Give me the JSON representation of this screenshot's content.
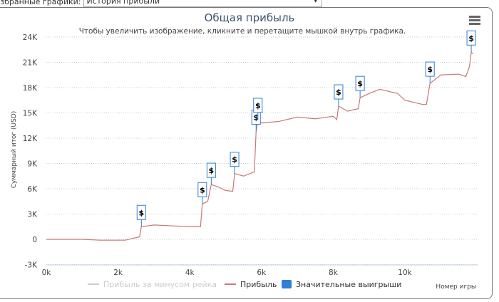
{
  "toolbar": {
    "label": "Избранные графики:",
    "selected": "История прибыли"
  },
  "chart_data": {
    "type": "line",
    "title": "Общая прибыль",
    "subtitle": "Чтобы увеличить изображение, кликните и перетащите мышкой внутрь графика.",
    "xlabel": "Номер игры",
    "ylabel": "Суммарный итог (USD)",
    "xlim": [
      0,
      12000
    ],
    "ylim": [
      -3000,
      24000
    ],
    "xticks": [
      "0k",
      "2k",
      "4k",
      "6k",
      "8k",
      "10k"
    ],
    "yticks": [
      "-3K",
      "0",
      "3K",
      "6K",
      "9K",
      "12K",
      "15K",
      "18K",
      "21K",
      "24K"
    ],
    "grid": "horizontal dotted",
    "legend_position": "bottom",
    "series": [
      {
        "name": "Прибыль за минусом рейка",
        "color": "#cccccc",
        "hidden": true,
        "points": []
      },
      {
        "name": "Прибыль",
        "color": "#c87878",
        "points": [
          [
            0,
            0
          ],
          [
            1000,
            0
          ],
          [
            1500,
            -100
          ],
          [
            2200,
            -100
          ],
          [
            2600,
            300
          ],
          [
            2650,
            1500
          ],
          [
            3000,
            1700
          ],
          [
            3500,
            1600
          ],
          [
            4000,
            1500
          ],
          [
            4300,
            1500
          ],
          [
            4350,
            4200
          ],
          [
            4500,
            4500
          ],
          [
            4600,
            6500
          ],
          [
            4800,
            6200
          ],
          [
            5000,
            5800
          ],
          [
            5200,
            5700
          ],
          [
            5250,
            7800
          ],
          [
            5500,
            7500
          ],
          [
            5800,
            8000
          ],
          [
            5850,
            12800
          ],
          [
            5900,
            14200
          ],
          [
            6000,
            13800
          ],
          [
            6500,
            14000
          ],
          [
            7000,
            14500
          ],
          [
            7500,
            14300
          ],
          [
            8000,
            14600
          ],
          [
            8100,
            14200
          ],
          [
            8150,
            15800
          ],
          [
            8400,
            15200
          ],
          [
            8700,
            15500
          ],
          [
            8750,
            16800
          ],
          [
            9000,
            17300
          ],
          [
            9300,
            17800
          ],
          [
            9800,
            17300
          ],
          [
            10000,
            16500
          ],
          [
            10500,
            16000
          ],
          [
            10600,
            16000
          ],
          [
            10700,
            18500
          ],
          [
            11000,
            19500
          ],
          [
            11500,
            19600
          ],
          [
            11700,
            19300
          ],
          [
            11800,
            20500
          ],
          [
            11850,
            22200
          ],
          [
            11900,
            22000
          ]
        ]
      },
      {
        "name": "Значительные выигрыши",
        "color": "#2f7ed8",
        "flag_text": "$",
        "points": [
          [
            2650,
            1500
          ],
          [
            4350,
            4200
          ],
          [
            4600,
            6500
          ],
          [
            5250,
            7800
          ],
          [
            5850,
            12800
          ],
          [
            5900,
            14200
          ],
          [
            8150,
            15800
          ],
          [
            8750,
            16800
          ],
          [
            10700,
            18500
          ],
          [
            11850,
            22200
          ]
        ]
      }
    ]
  },
  "menu_icon": "hamburger-icon"
}
